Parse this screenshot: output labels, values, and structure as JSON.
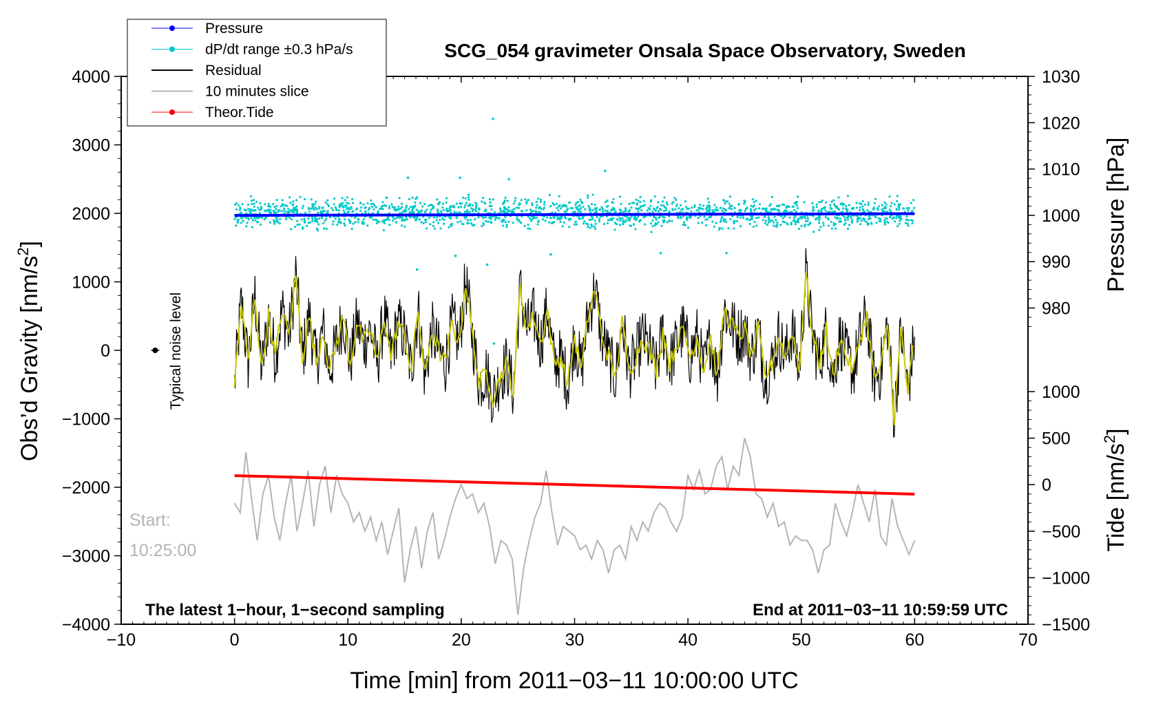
{
  "chart_data": {
    "type": "line",
    "title": "SCG_054 gravimeter Onsala Space Observatory, Sweden",
    "xlabel": "Time [min] from 2011−03−11 10:00:00 UTC",
    "ylabel_left": "Obs’d Gravity [nm/s",
    "ylabel_left_sup": "2",
    "ylabel_left_close": "]",
    "ylabel_right_pressure": "Pressure [hPa]",
    "ylabel_right_tide": "Tide [nm/s",
    "ylabel_right_tide_sup": "2",
    "ylabel_right_tide_close": "]",
    "xlim": [
      -10,
      70
    ],
    "ylim_left": [
      -4000,
      4000
    ],
    "ylim_pressure": [
      970,
      1030
    ],
    "ylim_tide": [
      -1500,
      1500
    ],
    "x_ticks": [
      {
        "v": -10,
        "label": "−10"
      },
      {
        "v": 0,
        "label": "0"
      },
      {
        "v": 10,
        "label": "10"
      },
      {
        "v": 20,
        "label": "20"
      },
      {
        "v": 30,
        "label": "30"
      },
      {
        "v": 40,
        "label": "40"
      },
      {
        "v": 50,
        "label": "50"
      },
      {
        "v": 60,
        "label": "60"
      },
      {
        "v": 70,
        "label": "70"
      }
    ],
    "left_ticks": [
      {
        "v": 4000,
        "label": "4000"
      },
      {
        "v": 3000,
        "label": "3000"
      },
      {
        "v": 2000,
        "label": "2000"
      },
      {
        "v": 1000,
        "label": "1000"
      },
      {
        "v": 0,
        "label": "0"
      },
      {
        "v": -1000,
        "label": "−1000"
      },
      {
        "v": -2000,
        "label": "−2000"
      },
      {
        "v": -3000,
        "label": "−3000"
      },
      {
        "v": -4000,
        "label": "−4000"
      }
    ],
    "pressure_ticks": [
      {
        "v": 1030,
        "label": "1030"
      },
      {
        "v": 1020,
        "label": "1020"
      },
      {
        "v": 1010,
        "label": "1010"
      },
      {
        "v": 1000,
        "label": "1000"
      },
      {
        "v": 990,
        "label": "990"
      },
      {
        "v": 980,
        "label": "980"
      }
    ],
    "tide_ticks": [
      {
        "v": 1000,
        "label": "1000"
      },
      {
        "v": 500,
        "label": "500"
      },
      {
        "v": 0,
        "label": "0"
      },
      {
        "v": -500,
        "label": "−500"
      },
      {
        "v": -1000,
        "label": "−1000"
      },
      {
        "v": -1500,
        "label": "−1500"
      }
    ],
    "legend": [
      {
        "label": "Pressure",
        "color": "#0000ff",
        "marker": true
      },
      {
        "label": "dP/dt range ±0.3 hPa/s",
        "color": "#00c8c8",
        "marker": true
      },
      {
        "label": "Residual",
        "color": "#000000",
        "marker": false
      },
      {
        "label": "10 minutes slice",
        "color": "#b4b4b4",
        "marker": false
      },
      {
        "label": "Theor.Tide",
        "color": "#ff0000",
        "marker": true
      }
    ],
    "legend_position": "top-left",
    "annotations": {
      "bottom_left": "The latest 1−hour, 1−second sampling",
      "bottom_right": "End at 2011−03−11 10:59:59 UTC",
      "start_label": "Start:",
      "start_time": "10:25:00",
      "noise_label": "Typical noise level"
    },
    "noise_marker": {
      "x": -7,
      "y": 0,
      "err": 40
    },
    "series": [
      {
        "name": "Pressure",
        "axis": "left",
        "color": "#0000ff",
        "x": [
          0,
          60
        ],
        "y": [
          1970,
          1995
        ]
      },
      {
        "name": "dP/dt range ±0.3 hPa/s",
        "axis": "left",
        "color": "#00c8c8",
        "center": 2000,
        "spread": 130,
        "count": 1800,
        "outliers": [
          {
            "x": 22.8,
            "y": 3380
          },
          {
            "x": 32.7,
            "y": 2620
          },
          {
            "x": 15.3,
            "y": 2520
          },
          {
            "x": 19.9,
            "y": 2520
          },
          {
            "x": 24.2,
            "y": 2500
          },
          {
            "x": 16.1,
            "y": 1180
          },
          {
            "x": 22.3,
            "y": 1250
          },
          {
            "x": 37.6,
            "y": 1420
          },
          {
            "x": 43.4,
            "y": 1420
          },
          {
            "x": 22.9,
            "y": 100
          },
          {
            "x": 19.5,
            "y": 1380
          },
          {
            "x": 27.9,
            "y": 1400
          }
        ]
      },
      {
        "name": "Residual",
        "axis": "left",
        "color": "#000000",
        "x": [
          0,
          0.6,
          1.2,
          1.8,
          2.4,
          3.0,
          3.6,
          4.2,
          4.8,
          5.4,
          6.0,
          6.6,
          7.2,
          7.8,
          8.4,
          9.0,
          9.6,
          10.2,
          10.8,
          11.4,
          12.0,
          12.6,
          13.2,
          13.8,
          14.4,
          15.0,
          15.6,
          16.2,
          16.8,
          17.4,
          18.0,
          18.6,
          19.2,
          19.8,
          20.4,
          21.0,
          21.6,
          22.2,
          22.8,
          23.4,
          24.0,
          24.6,
          25.2,
          25.8,
          26.4,
          27.0,
          27.6,
          28.2,
          28.8,
          29.4,
          30.0,
          30.6,
          31.2,
          31.8,
          32.4,
          33.0,
          33.6,
          34.2,
          34.8,
          35.4,
          36.0,
          36.6,
          37.2,
          37.8,
          38.4,
          39.0,
          39.6,
          40.2,
          40.8,
          41.4,
          42.0,
          42.6,
          43.2,
          43.8,
          44.4,
          45.0,
          45.6,
          46.2,
          46.8,
          47.4,
          48.0,
          48.6,
          49.2,
          49.8,
          50.4,
          51.0,
          51.6,
          52.2,
          52.8,
          53.4,
          54.0,
          54.6,
          55.2,
          55.8,
          56.4,
          57.0,
          57.6,
          58.2,
          58.8,
          59.4,
          60.0
        ],
        "y": [
          -500,
          700,
          -200,
          800,
          -300,
          500,
          -100,
          600,
          200,
          1100,
          -100,
          500,
          -200,
          300,
          -300,
          100,
          500,
          -200,
          400,
          100,
          300,
          -200,
          500,
          -100,
          400,
          200,
          -300,
          600,
          -400,
          300,
          0,
          -200,
          400,
          100,
          1000,
          200,
          -500,
          -300,
          -700,
          -400,
          -200,
          -600,
          900,
          300,
          500,
          100,
          600,
          -200,
          -100,
          -500,
          200,
          -300,
          500,
          900,
          200,
          -100,
          -400,
          400,
          -300,
          -100,
          200,
          0,
          -300,
          300,
          -200,
          100,
          300,
          -100,
          200,
          -300,
          200,
          -400,
          600,
          400,
          200,
          300,
          -100,
          300,
          -400,
          -200,
          200,
          -100,
          300,
          -300,
          1100,
          200,
          -200,
          300,
          -400,
          200,
          -100,
          -300,
          200,
          500,
          -400,
          -300,
          400,
          -1000,
          300,
          -600,
          200
        ]
      },
      {
        "name": "10 minutes slice",
        "axis": "tide",
        "color": "#b4b4b4",
        "x": [
          0,
          0.5,
          1,
          1.5,
          2,
          2.5,
          3,
          3.5,
          4,
          4.5,
          5,
          5.5,
          6,
          6.5,
          7,
          7.5,
          8,
          8.5,
          9,
          9.5,
          10,
          10.5,
          11,
          11.5,
          12,
          12.5,
          13,
          13.5,
          14,
          14.5,
          15,
          15.5,
          16,
          16.5,
          17,
          17.5,
          18,
          18.5,
          19,
          19.5,
          20,
          20.5,
          21,
          21.5,
          22,
          22.5,
          23,
          23.5,
          24,
          24.5,
          25,
          25.5,
          26,
          26.5,
          27,
          27.5,
          28,
          28.5,
          29,
          29.5,
          30,
          30.5,
          31,
          31.5,
          32,
          32.5,
          33,
          33.5,
          34,
          34.5,
          35,
          35.5,
          36,
          36.5,
          37,
          37.5,
          38,
          38.5,
          39,
          39.5,
          40,
          40.5,
          41,
          41.5,
          42,
          42.5,
          43,
          43.5,
          44,
          44.5,
          45,
          45.5,
          46,
          46.5,
          47,
          47.5,
          48,
          48.5,
          49,
          49.5,
          50,
          50.5,
          51,
          51.5,
          52,
          52.5,
          53,
          53.5,
          54,
          54.5,
          55,
          55.5,
          56,
          56.5,
          57,
          57.5,
          58,
          58.5,
          59,
          59.5,
          60
        ],
        "y": [
          -200,
          -300,
          350,
          -150,
          -600,
          -100,
          100,
          -350,
          -600,
          -200,
          100,
          -500,
          -200,
          150,
          -450,
          0,
          200,
          -300,
          100,
          -100,
          -200,
          -400,
          -300,
          -500,
          -350,
          -600,
          -400,
          -750,
          -500,
          -250,
          -1050,
          -700,
          -450,
          -900,
          -500,
          -300,
          -800,
          -600,
          -350,
          -150,
          0,
          -150,
          -100,
          -300,
          -200,
          -450,
          -850,
          -600,
          -650,
          -800,
          -1400,
          -900,
          -600,
          -350,
          -200,
          150,
          -300,
          -650,
          -450,
          -500,
          -550,
          -700,
          -650,
          -800,
          -600,
          -700,
          -950,
          -700,
          -650,
          -800,
          -450,
          -600,
          -400,
          -500,
          -300,
          -200,
          -250,
          -400,
          -500,
          -350,
          100,
          -50,
          150,
          -100,
          -50,
          200,
          300,
          -50,
          200,
          100,
          500,
          300,
          -100,
          -150,
          -350,
          -200,
          -450,
          -400,
          -650,
          -550,
          -600,
          -600,
          -700,
          -950,
          -700,
          -650,
          -200,
          -400,
          -550,
          -300,
          0,
          -200,
          -400,
          -50,
          -550,
          -650,
          -150,
          -450,
          -600,
          -750,
          -600
        ]
      },
      {
        "name": "Theor.Tide",
        "axis": "left",
        "color": "#ff0000",
        "x": [
          0,
          60
        ],
        "y": [
          -1830,
          -2100
        ]
      }
    ]
  }
}
